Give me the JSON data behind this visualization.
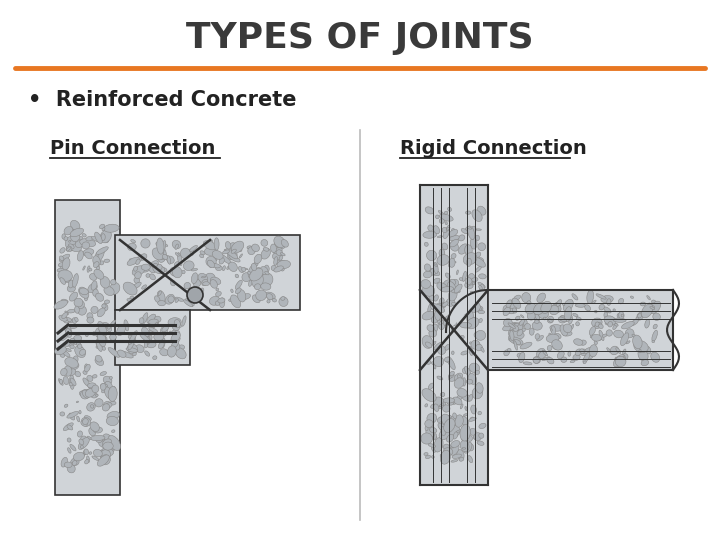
{
  "title": "TYPES OF JOINTS",
  "title_color": "#3a3a3a",
  "title_fontsize": 26,
  "orange_line_color": "#e87722",
  "bullet_text": "Reinforced Concrete",
  "bullet_fontsize": 15,
  "pin_label": "Pin Connection",
  "rigid_label": "Rigid Connection",
  "label_fontsize": 14,
  "background_color": "#ffffff",
  "text_color": "#222222",
  "concrete_color": "#d0d4d8",
  "line_color": "#333333"
}
